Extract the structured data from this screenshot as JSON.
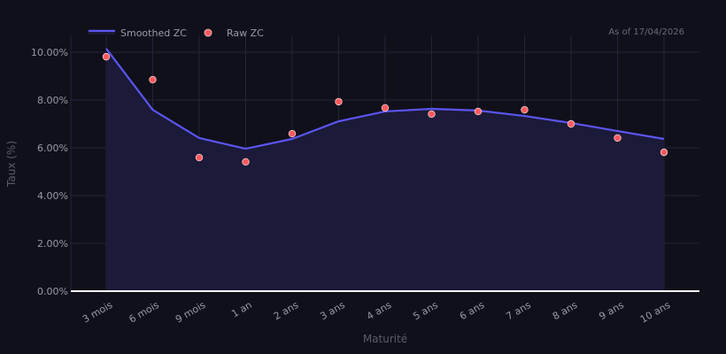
{
  "header": {
    "as_of": "As of 17/04/2026"
  },
  "legend": {
    "items": [
      {
        "label": "Smoothed ZC",
        "type": "line",
        "color": "#5b55f0"
      },
      {
        "label": "Raw ZC",
        "type": "marker",
        "color": "#ff5a5f"
      }
    ]
  },
  "colors": {
    "background": "#10101a",
    "line": "#5b55f0",
    "area_fill": "#1b1a38",
    "marker": "#ff5a5f",
    "marker_edge": "#f0d0d0",
    "grid": "#24243a",
    "baseline": "#ffffff"
  },
  "chart_data": {
    "type": "line",
    "title": "",
    "xlabel": "Maturité",
    "ylabel": "Taux (%)",
    "categories": [
      "3 mois",
      "6 mois",
      "9 mois",
      "1 an",
      "2 ans",
      "3 ans",
      "4 ans",
      "5 ans",
      "6 ans",
      "7 ans",
      "8 ans",
      "9 ans",
      "10 ans"
    ],
    "series": [
      {
        "name": "Smoothed ZC",
        "type": "line+area",
        "values": [
          10.15,
          7.59,
          6.41,
          5.96,
          6.37,
          7.11,
          7.52,
          7.63,
          7.56,
          7.33,
          7.04,
          6.7,
          6.37
        ]
      },
      {
        "name": "Raw ZC",
        "type": "scatter",
        "values": [
          9.81,
          8.85,
          5.59,
          5.41,
          6.59,
          7.93,
          7.67,
          7.41,
          7.52,
          7.59,
          7.0,
          6.41,
          5.81
        ]
      }
    ],
    "yticks": [
      "0.00%",
      "2.00%",
      "4.00%",
      "6.00%",
      "8.00%",
      "10.00%"
    ],
    "ytick_values": [
      0,
      2,
      4,
      6,
      8,
      10
    ],
    "ylim": [
      0,
      10.7
    ],
    "grid": true,
    "legend_position": "top-left",
    "annotation": "As of 17/04/2026"
  }
}
